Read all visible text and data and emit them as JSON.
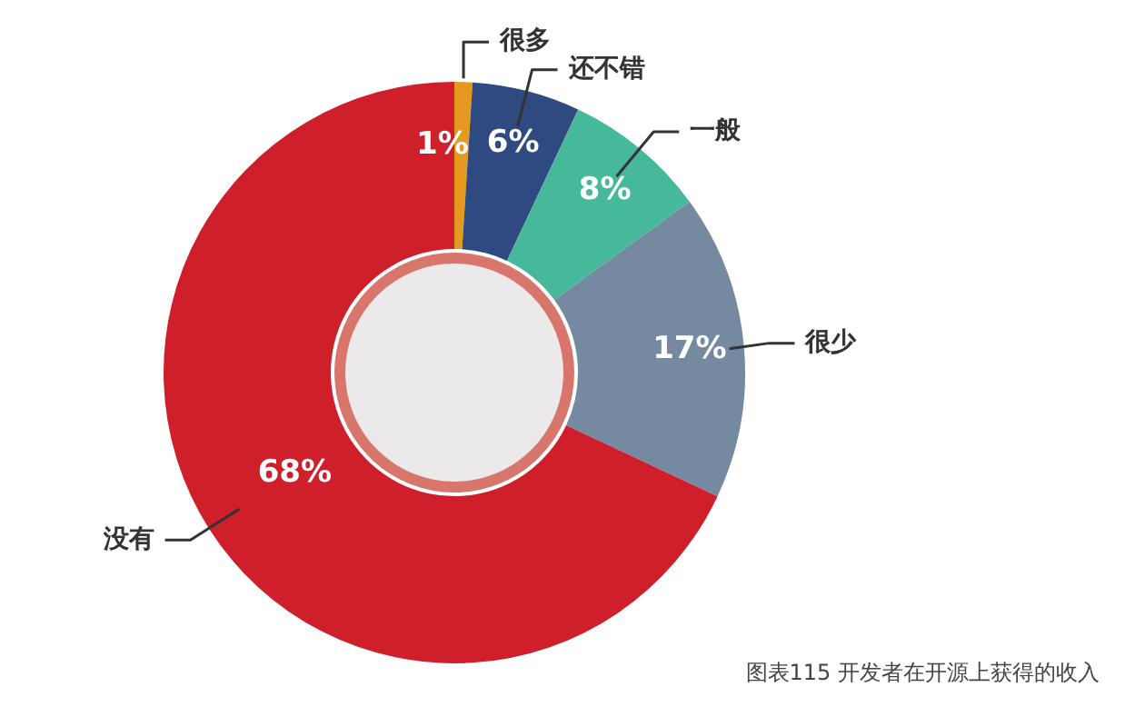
{
  "chart_data": {
    "type": "donut",
    "categories": [
      "很多",
      "还不错",
      "一般",
      "很少",
      "没有"
    ],
    "values": [
      1,
      6,
      8,
      17,
      68
    ],
    "value_labels": [
      "1%",
      "6%",
      "8%",
      "17%",
      "68%"
    ],
    "colors": [
      "#e39a1e",
      "#2e4a80",
      "#45b99a",
      "#7589a0",
      "#cf1f2a"
    ],
    "legend": false,
    "annotations": [
      "图表115 开发者在开源上获得的收入"
    ]
  }
}
